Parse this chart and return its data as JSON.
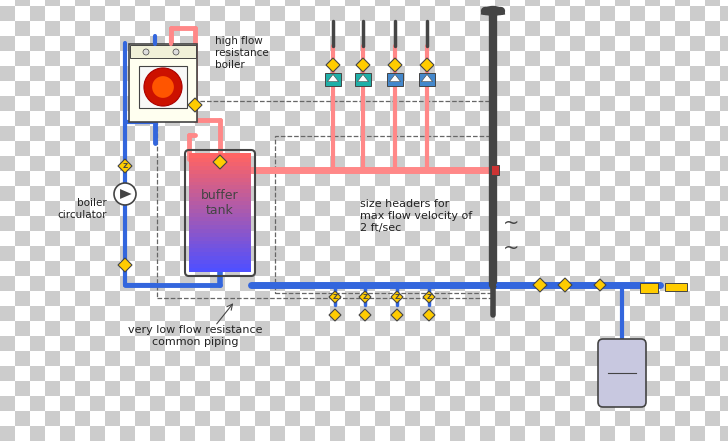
{
  "fig_width": 7.28,
  "fig_height": 4.41,
  "dpi": 100,
  "checker_size": 15,
  "checker_color1": "#cccccc",
  "checker_color2": "#ffffff",
  "colors": {
    "hot_pipe": "#FF8888",
    "cold_pipe": "#3366DD",
    "dark_gray": "#444444",
    "gray_pipe": "#666666",
    "yellow": "#DDAA00",
    "yellow_bright": "#FFCC00",
    "teal": "#009999",
    "blue_act": "#4477BB",
    "boiler_red": "#CC1100",
    "boiler_bg": "#FFFFF0",
    "boiler_border": "#888888",
    "expansion": "#C8C8E0",
    "buf_top": "#FF9999",
    "buf_bot": "#5566FF",
    "buf_bg": "#FFFFF0",
    "white": "#FFFFFF",
    "black": "#000000",
    "text": "#222222",
    "dashed": "#666666"
  },
  "labels": {
    "boiler": "high flow\nresistance\nboiler",
    "circulator": "boiler\ncirculator",
    "buffer": "buffer\ntank",
    "size_headers": "size headers for\nmax flow velocity of\n2 ft/sec",
    "common_piping": "very low flow resistance\ncommon piping"
  }
}
